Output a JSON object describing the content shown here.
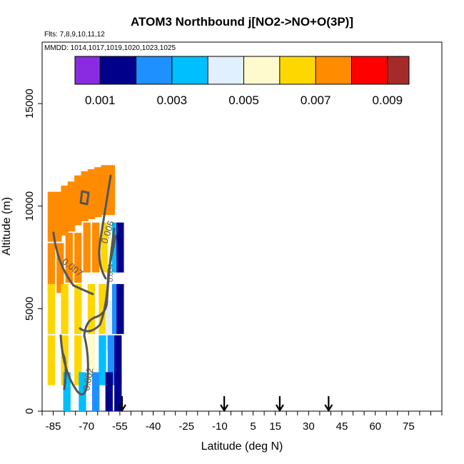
{
  "chart_data": {
    "type": "heatmap",
    "title": "ATOM3 Northbound j[NO2->NO+O(3P)]",
    "flights_label": "Flts: 7,8,9,10,11,12",
    "dates_label": "MMDD: 1014,1017,1019,1020,1023,1025",
    "xlabel": "Latitude (deg N)",
    "ylabel": "Altitude (m)",
    "xlim": [
      -90,
      90
    ],
    "ylim": [
      0,
      18000
    ],
    "x_ticks": [
      "-85",
      "-70",
      "-55",
      "-40",
      "-25",
      "-10",
      "5",
      "15",
      "30",
      "45",
      "60",
      "75"
    ],
    "x_tick_values": [
      -85,
      -70,
      -55,
      -40,
      -25,
      -10,
      5,
      15,
      30,
      45,
      60,
      75
    ],
    "y_ticks": [
      "0",
      "5000",
      "10000",
      "15000"
    ],
    "y_tick_values": [
      0,
      5000,
      10000,
      15000
    ],
    "colorbar": {
      "range": [
        0.0003,
        0.0096
      ],
      "boundaries": [
        0.0003,
        0.001,
        0.002,
        0.003,
        0.004,
        0.005,
        0.006,
        0.007,
        0.008,
        0.009,
        0.0096
      ],
      "tick_labels": [
        "0.001",
        "0.003",
        "0.005",
        "0.007",
        "0.009"
      ],
      "tick_values": [
        0.001,
        0.003,
        0.005,
        0.007,
        0.009
      ],
      "colors": [
        "#8a2be2",
        "#00008b",
        "#1e90ff",
        "#00bfff",
        "#e0f0ff",
        "#fffacd",
        "#ffd700",
        "#ff8c00",
        "#ff0000",
        "#a52a2a"
      ]
    },
    "cells": [
      {
        "lat": -86,
        "alt": 9500,
        "value": 0.0073
      },
      {
        "lat": -83,
        "alt": 9500,
        "value": 0.0075
      },
      {
        "lat": -80,
        "alt": 9800,
        "value": 0.0078
      },
      {
        "lat": -77,
        "alt": 10000,
        "value": 0.0077
      },
      {
        "lat": -74,
        "alt": 10300,
        "value": 0.0078
      },
      {
        "lat": -71,
        "alt": 10500,
        "value": 0.0079
      },
      {
        "lat": -68,
        "alt": 10600,
        "value": 0.0079
      },
      {
        "lat": -65,
        "alt": 10700,
        "value": 0.0078
      },
      {
        "lat": -62,
        "alt": 10800,
        "value": 0.0076
      },
      {
        "lat": -59,
        "alt": 10800,
        "value": 0.0073
      },
      {
        "lat": -86,
        "alt": 7000,
        "value": 0.007
      },
      {
        "lat": -82,
        "alt": 7000,
        "value": 0.007
      },
      {
        "lat": -78,
        "alt": 7500,
        "value": 0.0072
      },
      {
        "lat": -74,
        "alt": 7500,
        "value": 0.0073
      },
      {
        "lat": -70,
        "alt": 8000,
        "value": 0.0073
      },
      {
        "lat": -66,
        "alt": 8000,
        "value": 0.0072
      },
      {
        "lat": -62,
        "alt": 8000,
        "value": 0.0068
      },
      {
        "lat": -59,
        "alt": 8000,
        "value": 0.0058
      },
      {
        "lat": -57,
        "alt": 8000,
        "value": 0.0035
      },
      {
        "lat": -55,
        "alt": 8000,
        "value": 0.0018
      },
      {
        "lat": -86,
        "alt": 5000,
        "value": 0.0066
      },
      {
        "lat": -80,
        "alt": 5000,
        "value": 0.0068
      },
      {
        "lat": -74,
        "alt": 5000,
        "value": 0.0069
      },
      {
        "lat": -68,
        "alt": 5000,
        "value": 0.0068
      },
      {
        "lat": -63,
        "alt": 5000,
        "value": 0.0063
      },
      {
        "lat": -60,
        "alt": 4200,
        "value": 0.0042
      },
      {
        "lat": -57,
        "alt": 5000,
        "value": 0.0024
      },
      {
        "lat": -55,
        "alt": 5000,
        "value": 0.0013
      },
      {
        "lat": -86,
        "alt": 2500,
        "value": 0.006
      },
      {
        "lat": -80,
        "alt": 2500,
        "value": 0.0063
      },
      {
        "lat": -74,
        "alt": 2500,
        "value": 0.006
      },
      {
        "lat": -68,
        "alt": 2500,
        "value": 0.0052
      },
      {
        "lat": -63,
        "alt": 2500,
        "value": 0.0035
      },
      {
        "lat": -59,
        "alt": 2500,
        "value": 0.0022
      },
      {
        "lat": -56,
        "alt": 2500,
        "value": 0.0012
      },
      {
        "lat": -79,
        "alt": 700,
        "value": 0.003
      },
      {
        "lat": -72,
        "alt": 700,
        "value": 0.0036
      },
      {
        "lat": -66,
        "alt": 700,
        "value": 0.0029
      },
      {
        "lat": -60,
        "alt": 700,
        "value": 0.0018
      },
      {
        "lat": -56,
        "alt": 700,
        "value": 0.001
      }
    ],
    "contours": [
      "0.006",
      "0.007",
      "0.002",
      "0.004"
    ],
    "flight_markers_lat": [
      -54,
      -8,
      17,
      39
    ]
  }
}
